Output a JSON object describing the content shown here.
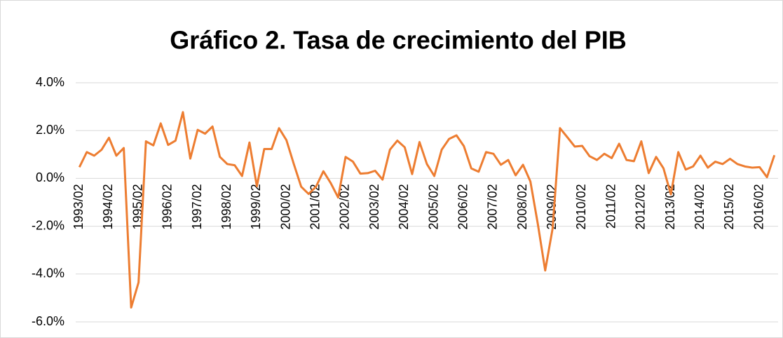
{
  "chart_data": {
    "type": "line",
    "title": "Gráfico 2. Tasa de crecimiento del PIB",
    "categories": [
      "1993/02",
      null,
      null,
      null,
      "1994/02",
      null,
      null,
      null,
      "1995/02",
      null,
      null,
      null,
      "1996/02",
      null,
      null,
      null,
      "1997/02",
      null,
      null,
      null,
      "1998/02",
      null,
      null,
      null,
      "1999/02",
      null,
      null,
      null,
      "2000/02",
      null,
      null,
      null,
      "2001/02",
      null,
      null,
      null,
      "2002/02",
      null,
      null,
      null,
      "2003/02",
      null,
      null,
      null,
      "2004/02",
      null,
      null,
      null,
      "2005/02",
      null,
      null,
      null,
      "2006/02",
      null,
      null,
      null,
      "2007/02",
      null,
      null,
      null,
      "2008/02",
      null,
      null,
      null,
      "2009/02",
      null,
      null,
      null,
      "2010/02",
      null,
      null,
      null,
      "2011/02",
      null,
      null,
      null,
      "2012/02",
      null,
      null,
      null,
      "2013/02",
      null,
      null,
      null,
      "2014/02",
      null,
      null,
      null,
      "2015/02",
      null,
      null,
      null,
      "2016/02",
      null,
      null
    ],
    "series": [
      {
        "name": "PIB",
        "color": "#ed7d31",
        "values": [
          0.47,
          1.1,
          0.95,
          1.2,
          1.7,
          0.95,
          1.27,
          -5.4,
          -4.35,
          1.55,
          1.38,
          2.3,
          1.4,
          1.58,
          2.77,
          0.83,
          2.03,
          1.87,
          2.17,
          0.9,
          0.6,
          0.55,
          0.1,
          1.5,
          -0.33,
          1.23,
          1.23,
          2.1,
          1.6,
          0.6,
          -0.35,
          -0.65,
          -0.35,
          0.3,
          -0.2,
          -0.8,
          0.9,
          0.7,
          0.2,
          0.22,
          0.32,
          -0.05,
          1.2,
          1.58,
          1.3,
          0.18,
          1.52,
          0.6,
          0.1,
          1.2,
          1.65,
          1.8,
          1.35,
          0.42,
          0.28,
          1.1,
          1.03,
          0.57,
          0.77,
          0.13,
          0.57,
          -0.13,
          -1.9,
          -3.85,
          -2.1,
          2.1,
          1.72,
          1.33,
          1.36,
          0.93,
          0.77,
          1.03,
          0.85,
          1.45,
          0.77,
          0.72,
          1.55,
          0.22,
          0.9,
          0.42,
          -0.67,
          1.1,
          0.37,
          0.5,
          0.95,
          0.45,
          0.7,
          0.6,
          0.82,
          0.6,
          0.5,
          0.45,
          0.47,
          0.05,
          0.97
        ]
      }
    ],
    "ylim": [
      -6,
      4
    ],
    "yticks": [
      {
        "value": -6,
        "label": "-6.0%"
      },
      {
        "value": -4,
        "label": "-4.0%"
      },
      {
        "value": -2,
        "label": "-2.0%"
      },
      {
        "value": 0,
        "label": "0.0%"
      },
      {
        "value": 2,
        "label": "2.0%"
      },
      {
        "value": 4,
        "label": "4.0%"
      }
    ],
    "grid": true
  }
}
